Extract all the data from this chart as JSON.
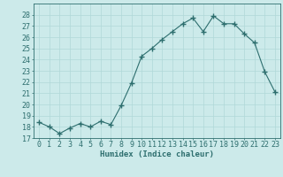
{
  "x": [
    0,
    1,
    2,
    3,
    4,
    5,
    6,
    7,
    8,
    9,
    10,
    11,
    12,
    13,
    14,
    15,
    16,
    17,
    18,
    19,
    20,
    21,
    22,
    23
  ],
  "y": [
    18.4,
    18.0,
    17.4,
    17.9,
    18.3,
    18.0,
    18.5,
    18.2,
    19.9,
    21.9,
    24.3,
    25.0,
    25.8,
    26.5,
    27.2,
    27.7,
    26.5,
    27.9,
    27.2,
    27.2,
    26.3,
    25.5,
    22.9,
    21.1
  ],
  "line_color": "#2d6e6e",
  "marker": "+",
  "marker_size": 4,
  "bg_color": "#cceaea",
  "grid_color": "#b0d8d8",
  "xlabel": "Humidex (Indice chaleur)",
  "ylim": [
    17,
    29
  ],
  "xlim": [
    -0.5,
    23.5
  ],
  "yticks": [
    17,
    18,
    19,
    20,
    21,
    22,
    23,
    24,
    25,
    26,
    27,
    28
  ],
  "xticks": [
    0,
    1,
    2,
    3,
    4,
    5,
    6,
    7,
    8,
    9,
    10,
    11,
    12,
    13,
    14,
    15,
    16,
    17,
    18,
    19,
    20,
    21,
    22,
    23
  ],
  "label_fontsize": 6.5,
  "tick_fontsize": 6.0
}
